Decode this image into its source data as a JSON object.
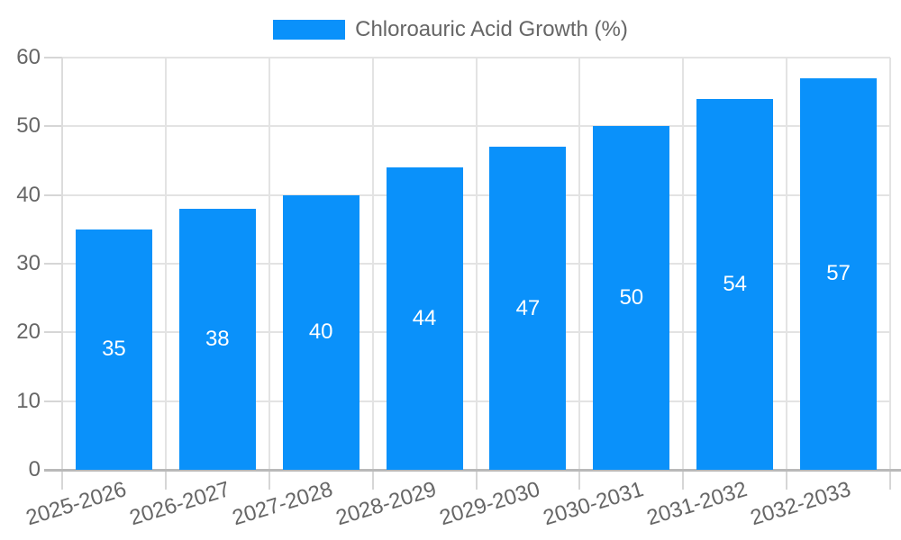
{
  "chart_data": {
    "type": "bar",
    "title": "Chloroauric Acid Growth (%)",
    "categories": [
      "2025-2026",
      "2026-2027",
      "2027-2028",
      "2028-2029",
      "2029-2030",
      "2030-2031",
      "2031-2032",
      "2032-2033"
    ],
    "values": [
      35,
      38,
      40,
      44,
      47,
      50,
      54,
      57
    ],
    "xlabel": "",
    "ylabel": "",
    "ylim": [
      0,
      60
    ],
    "yticks": [
      0,
      10,
      20,
      30,
      40,
      50,
      60
    ],
    "grid": true,
    "legend_position": "top-center",
    "bar_labels_inside": true,
    "colors": {
      "bar": "#0a91fa",
      "bar_label": "#ffffff",
      "tick_text": "#666666",
      "gridline": "#e3e3e3",
      "y_axis_line": "#dcdcdc",
      "x_axis_line": "#b9b9b9",
      "tick_mark": "#d6d6d6",
      "background": "#ffffff"
    }
  },
  "legend": {
    "label": "Chloroauric Acid Growth (%)"
  }
}
